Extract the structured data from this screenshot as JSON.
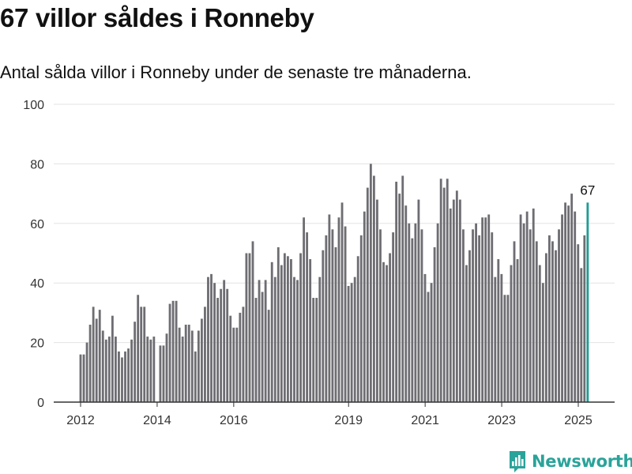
{
  "title": "67 villor såldes i Ronneby",
  "subtitle": "Antal sålda villor i Ronneby under de senaste tre månaderna.",
  "brand": {
    "name": "Newsworthy",
    "icon": "newsworthy-logo-icon"
  },
  "colors": {
    "bar": "#6e6d72",
    "highlight": "#1e9c95",
    "grid": "#e3e3e3",
    "axis": "#333333",
    "brand": "#2aa39a"
  },
  "chart_data": {
    "type": "bar",
    "ylim": [
      0,
      100
    ],
    "yticks": [
      0,
      20,
      40,
      60,
      80,
      100
    ],
    "xtick_labels": [
      "2012",
      "2014",
      "2016",
      "2019",
      "2021",
      "2023",
      "2025"
    ],
    "xtick_positions": [
      2012.0,
      2014.0,
      2016.0,
      2019.0,
      2021.0,
      2023.0,
      2025.0
    ],
    "x_start": 2012.0,
    "x_step": 0.0833,
    "values": [
      16,
      16,
      20,
      26,
      32,
      28,
      31,
      24,
      21,
      22,
      29,
      22,
      17,
      15,
      17,
      18,
      21,
      27,
      36,
      32,
      32,
      22,
      21,
      22,
      0,
      19,
      19,
      23,
      33,
      34,
      34,
      25,
      22,
      26,
      26,
      24,
      17,
      24,
      28,
      32,
      42,
      43,
      40,
      35,
      38,
      41,
      38,
      29,
      25,
      25,
      30,
      32,
      50,
      50,
      54,
      35,
      41,
      37,
      41,
      31,
      47,
      42,
      52,
      46,
      50,
      49,
      48,
      42,
      41,
      50,
      62,
      57,
      48,
      35,
      35,
      42,
      51,
      56,
      63,
      58,
      52,
      62,
      67,
      59,
      39,
      40,
      42,
      49,
      56,
      64,
      72,
      80,
      76,
      68,
      58,
      47,
      46,
      50,
      57,
      74,
      70,
      76,
      66,
      60,
      55,
      60,
      68,
      58,
      43,
      37,
      40,
      52,
      60,
      75,
      72,
      75,
      65,
      68,
      71,
      68,
      58,
      46,
      51,
      58,
      60,
      56,
      62,
      62,
      63,
      57,
      42,
      48,
      43,
      36,
      36,
      46,
      54,
      48,
      63,
      60,
      64,
      58,
      65,
      54,
      46,
      40,
      50,
      56,
      54,
      51,
      58,
      63,
      67,
      66,
      70,
      64,
      53,
      45,
      56,
      67
    ],
    "highlight_index": 159,
    "highlight_label": "67"
  }
}
